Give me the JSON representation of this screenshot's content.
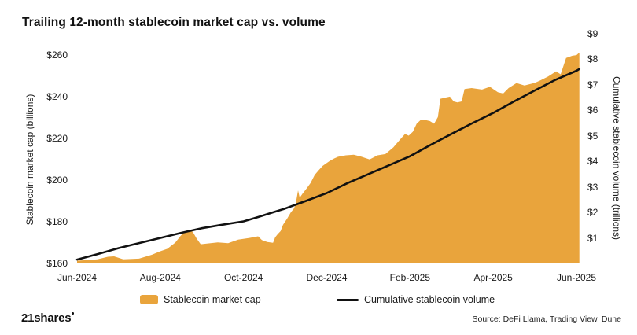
{
  "title": "Trailing 12-month stablecoin market cap vs. volume",
  "colors": {
    "area": "#E9A43C",
    "line": "#111111",
    "background": "#FFFFFF",
    "text": "#1A1A1A"
  },
  "axes": {
    "left": {
      "title": "Stablecoin market cap (billions)",
      "ticks": [
        {
          "label": "$160",
          "value": 160
        },
        {
          "label": "$180",
          "value": 180
        },
        {
          "label": "$200",
          "value": 200
        },
        {
          "label": "$220",
          "value": 220
        },
        {
          "label": "$240",
          "value": 240
        },
        {
          "label": "$260",
          "value": 260
        }
      ]
    },
    "right": {
      "title": "Cumulative stablecoin volume (trillions)",
      "ticks": [
        {
          "label": "$1",
          "value": 1
        },
        {
          "label": "$2",
          "value": 2
        },
        {
          "label": "$3",
          "value": 3
        },
        {
          "label": "$4",
          "value": 4
        },
        {
          "label": "$5",
          "value": 5
        },
        {
          "label": "$6",
          "value": 6
        },
        {
          "label": "$7",
          "value": 7
        },
        {
          "label": "$8",
          "value": 8
        },
        {
          "label": "$9",
          "value": 9
        }
      ]
    },
    "x": {
      "ticks": [
        {
          "label": "Jun-2024",
          "t": 0
        },
        {
          "label": "Aug-2024",
          "t": 2
        },
        {
          "label": "Oct-2024",
          "t": 4
        },
        {
          "label": "Dec-2024",
          "t": 6
        },
        {
          "label": "Feb-2025",
          "t": 8
        },
        {
          "label": "Apr-2025",
          "t": 10
        },
        {
          "label": "Jun-2025",
          "t": 12
        }
      ]
    }
  },
  "legend": {
    "items": [
      {
        "label": "Stablecoin market cap",
        "type": "area",
        "color": "#E9A43C"
      },
      {
        "label": "Cumulative stablecoin volume",
        "type": "line",
        "color": "#111111"
      }
    ]
  },
  "footer": {
    "logo": "21shares",
    "source": "Source: DeFi Llama, Trading View, Dune"
  },
  "chart_data": {
    "type": "area",
    "title": "Trailing 12-month stablecoin market cap vs. volume",
    "x_unit": "months since Jun-2024",
    "x_tick_labels": [
      "Jun-2024",
      "Aug-2024",
      "Oct-2024",
      "Dec-2024",
      "Feb-2025",
      "Apr-2025",
      "Jun-2025"
    ],
    "y_left": {
      "label": "Stablecoin market cap (billions)",
      "range": [
        160,
        270
      ],
      "tick_step": 20,
      "unit": "USD billions"
    },
    "y_right": {
      "label": "Cumulative stablecoin volume (trillions)",
      "range": [
        0,
        9
      ],
      "tick_step": 1,
      "unit": "USD trillions"
    },
    "grid": false,
    "legend_position": "bottom",
    "series": [
      {
        "name": "Stablecoin market cap",
        "type": "area",
        "axis": "left",
        "color": "#E9A43C",
        "points": [
          [
            0.0,
            161.3
          ],
          [
            0.26,
            161.6
          ],
          [
            0.49,
            162.0
          ],
          [
            0.74,
            163.2
          ],
          [
            0.89,
            163.4
          ],
          [
            1.11,
            162.0
          ],
          [
            1.49,
            162.3
          ],
          [
            1.8,
            164.2
          ],
          [
            1.98,
            165.7
          ],
          [
            2.17,
            167.0
          ],
          [
            2.36,
            170.0
          ],
          [
            2.49,
            173.3
          ],
          [
            2.63,
            175.8
          ],
          [
            2.78,
            175.2
          ],
          [
            2.87,
            172.0
          ],
          [
            2.97,
            169.2
          ],
          [
            3.12,
            169.5
          ],
          [
            3.38,
            170.1
          ],
          [
            3.63,
            169.7
          ],
          [
            3.87,
            171.4
          ],
          [
            4.14,
            172.2
          ],
          [
            4.35,
            173.0
          ],
          [
            4.44,
            171.2
          ],
          [
            4.57,
            170.3
          ],
          [
            4.71,
            169.9
          ],
          [
            4.76,
            172.5
          ],
          [
            4.82,
            174.0
          ],
          [
            4.89,
            175.5
          ],
          [
            4.95,
            178.5
          ],
          [
            5.05,
            181.5
          ],
          [
            5.14,
            184.6
          ],
          [
            5.2,
            186.0
          ],
          [
            5.25,
            188.0
          ],
          [
            5.31,
            195.0
          ],
          [
            5.35,
            191.5
          ],
          [
            5.42,
            193.5
          ],
          [
            5.52,
            196.0
          ],
          [
            5.61,
            198.5
          ],
          [
            5.71,
            202.4
          ],
          [
            5.8,
            204.5
          ],
          [
            5.9,
            206.7
          ],
          [
            5.99,
            208.0
          ],
          [
            6.08,
            209.2
          ],
          [
            6.18,
            210.3
          ],
          [
            6.27,
            211.1
          ],
          [
            6.46,
            211.8
          ],
          [
            6.65,
            212.1
          ],
          [
            6.84,
            211.1
          ],
          [
            7.03,
            209.8
          ],
          [
            7.22,
            211.8
          ],
          [
            7.41,
            212.4
          ],
          [
            7.6,
            215.6
          ],
          [
            7.79,
            220.0
          ],
          [
            7.88,
            222.0
          ],
          [
            7.97,
            221.2
          ],
          [
            8.07,
            223.1
          ],
          [
            8.16,
            226.9
          ],
          [
            8.26,
            228.8
          ],
          [
            8.35,
            228.8
          ],
          [
            8.48,
            228.2
          ],
          [
            8.58,
            226.9
          ],
          [
            8.67,
            230.1
          ],
          [
            8.73,
            238.9
          ],
          [
            8.86,
            239.5
          ],
          [
            8.96,
            239.9
          ],
          [
            9.05,
            237.6
          ],
          [
            9.14,
            237.1
          ],
          [
            9.24,
            237.6
          ],
          [
            9.31,
            243.5
          ],
          [
            9.48,
            244.0
          ],
          [
            9.73,
            243.3
          ],
          [
            9.92,
            244.6
          ],
          [
            10.11,
            242.0
          ],
          [
            10.24,
            241.4
          ],
          [
            10.37,
            244.0
          ],
          [
            10.56,
            246.4
          ],
          [
            10.75,
            245.2
          ],
          [
            10.86,
            245.8
          ],
          [
            11.0,
            246.5
          ],
          [
            11.13,
            247.7
          ],
          [
            11.32,
            249.6
          ],
          [
            11.51,
            252.0
          ],
          [
            11.62,
            250.6
          ],
          [
            11.75,
            258.4
          ],
          [
            11.9,
            259.5
          ],
          [
            12.0,
            259.8
          ],
          [
            12.07,
            261.0
          ]
        ]
      },
      {
        "name": "Cumulative stablecoin volume",
        "type": "line",
        "axis": "right",
        "color": "#111111",
        "points": [
          [
            0.0,
            0.15
          ],
          [
            0.5,
            0.37
          ],
          [
            1.0,
            0.6
          ],
          [
            1.5,
            0.8
          ],
          [
            2.0,
            1.0
          ],
          [
            2.5,
            1.2
          ],
          [
            3.0,
            1.38
          ],
          [
            3.5,
            1.52
          ],
          [
            4.0,
            1.65
          ],
          [
            4.35,
            1.82
          ],
          [
            4.7,
            2.0
          ],
          [
            5.0,
            2.15
          ],
          [
            5.5,
            2.45
          ],
          [
            6.0,
            2.76
          ],
          [
            6.5,
            3.15
          ],
          [
            7.0,
            3.5
          ],
          [
            7.5,
            3.85
          ],
          [
            8.0,
            4.2
          ],
          [
            8.5,
            4.65
          ],
          [
            9.0,
            5.08
          ],
          [
            9.5,
            5.5
          ],
          [
            10.0,
            5.9
          ],
          [
            10.5,
            6.35
          ],
          [
            11.0,
            6.78
          ],
          [
            11.5,
            7.2
          ],
          [
            12.0,
            7.55
          ],
          [
            12.07,
            7.62
          ]
        ]
      }
    ]
  }
}
